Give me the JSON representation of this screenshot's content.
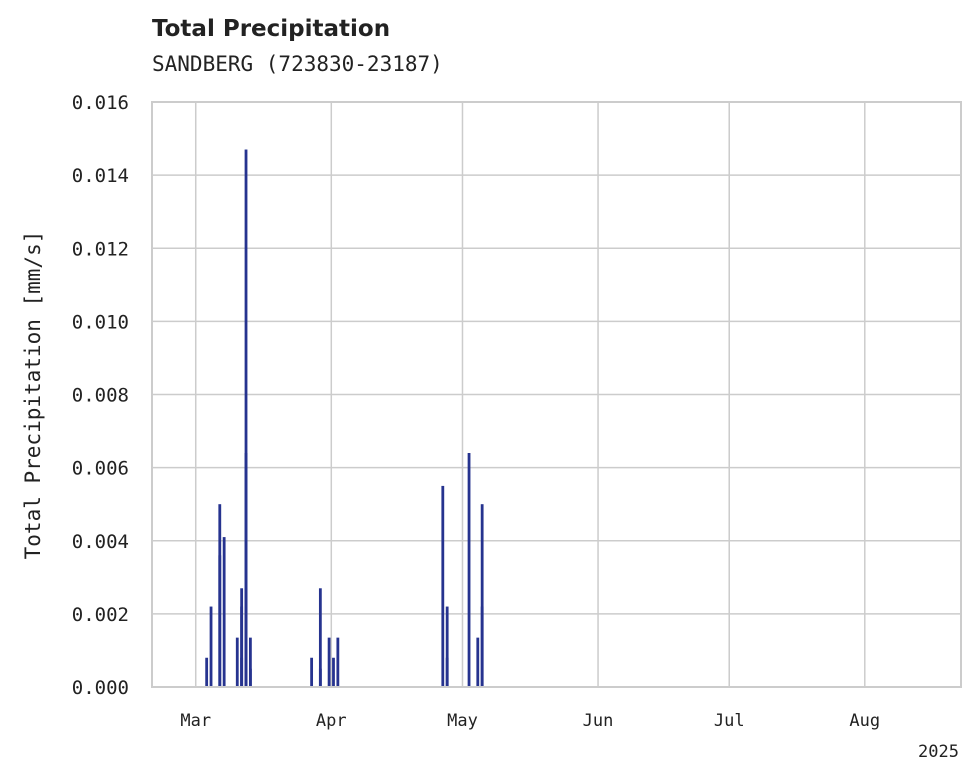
{
  "chart_data": {
    "type": "bar",
    "title": "Total Precipitation",
    "subtitle": "SANDBERG (723830-23187)",
    "xlabel": "",
    "ylabel": "Total Precipitation [mm/s]",
    "ylim": [
      0,
      0.016
    ],
    "xlim": [
      "2025-02-19",
      "2025-08-23"
    ],
    "y_ticks": [
      "0.000",
      "0.002",
      "0.004",
      "0.006",
      "0.008",
      "0.010",
      "0.012",
      "0.014",
      "0.016"
    ],
    "x_ticks": [
      {
        "date": "2025-03-01",
        "label": "Mar"
      },
      {
        "date": "2025-04-01",
        "label": "Apr"
      },
      {
        "date": "2025-05-01",
        "label": "May"
      },
      {
        "date": "2025-06-01",
        "label": "Jun"
      },
      {
        "date": "2025-07-01",
        "label": "Jul"
      },
      {
        "date": "2025-08-01",
        "label": "Aug"
      }
    ],
    "year_label": "2025",
    "grid": true,
    "bar_color": "#26338f",
    "series": [
      {
        "dates": [
          "2025-03-03",
          "2025-03-04",
          "2025-03-06",
          "2025-03-06",
          "2025-03-07",
          "2025-03-10",
          "2025-03-11",
          "2025-03-11",
          "2025-03-11",
          "2025-03-12",
          "2025-03-12",
          "2025-03-12",
          "2025-03-13",
          "2025-03-13",
          "2025-03-27",
          "2025-03-29",
          "2025-03-29",
          "2025-03-31",
          "2025-04-01",
          "2025-04-02",
          "2025-04-26",
          "2025-04-27",
          "2025-04-27",
          "2025-05-02",
          "2025-05-04",
          "2025-05-05",
          "2025-05-05"
        ],
        "values": [
          0.0008,
          0.0022,
          0.005,
          0.0036,
          0.0041,
          0.00135,
          0.0008,
          0.0027,
          0.0022,
          0.0147,
          0.0064,
          0.0027,
          0.00135,
          0.0005,
          0.0008,
          0.0027,
          0.0005,
          0.00135,
          0.0008,
          0.00135,
          0.0055,
          0.0022,
          0.0008,
          0.0064,
          0.00135,
          0.005,
          0.0022
        ]
      }
    ]
  }
}
